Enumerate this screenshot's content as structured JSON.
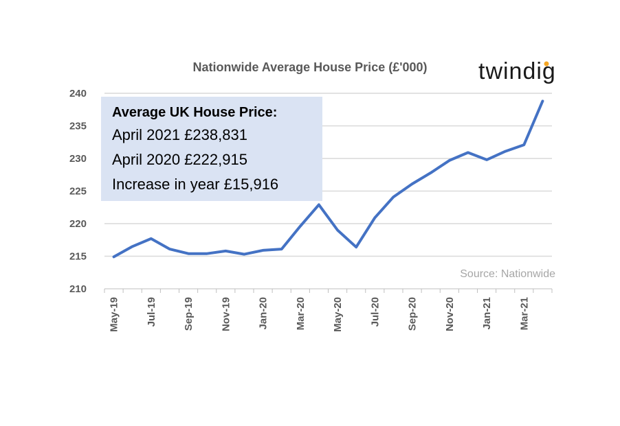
{
  "chart_data": {
    "type": "line",
    "title": "Nationwide Average House Price (£'000)",
    "xlabel": "",
    "ylabel": "",
    "categories": [
      "May-19",
      "Jun-19",
      "Jul-19",
      "Aug-19",
      "Sep-19",
      "Oct-19",
      "Nov-19",
      "Dec-19",
      "Jan-20",
      "Feb-20",
      "Mar-20",
      "Apr-20",
      "May-20",
      "Jun-20",
      "Jul-20",
      "Aug-20",
      "Sep-20",
      "Oct-20",
      "Nov-20",
      "Dec-20",
      "Jan-21",
      "Feb-21",
      "Mar-21",
      "Apr-21"
    ],
    "tick_labels": [
      "May-19",
      "Jul-19",
      "Sep-19",
      "Nov-19",
      "Jan-20",
      "Mar-20",
      "May-20",
      "Jul-20",
      "Sep-20",
      "Nov-20",
      "Jan-21",
      "Mar-21"
    ],
    "series": [
      {
        "values": [
          214.9,
          216.5,
          217.7,
          216.1,
          215.4,
          215.4,
          215.8,
          215.3,
          215.9,
          216.1,
          219.6,
          222.9,
          219.0,
          216.4,
          220.9,
          224.1,
          226.1,
          227.8,
          229.7,
          230.9,
          229.8,
          231.1,
          232.1,
          238.8
        ]
      }
    ],
    "ylim": [
      210,
      240
    ],
    "yticks": [
      210,
      215,
      220,
      225,
      230,
      235,
      240
    ],
    "grid": true,
    "legend": "none",
    "line_color": "#4472c4",
    "grid_color": "#d9d9d9",
    "annotation_bg": "#dae3f3"
  },
  "annotation": {
    "heading": "Average UK House Price:",
    "lines": [
      "April 2021 £238,831",
      "April 2020 £222,915",
      "Increase in year £15,916"
    ]
  },
  "source_note": "Source: Nationwide",
  "brand": {
    "name": "twindig",
    "dot_color": "#f5a623"
  }
}
